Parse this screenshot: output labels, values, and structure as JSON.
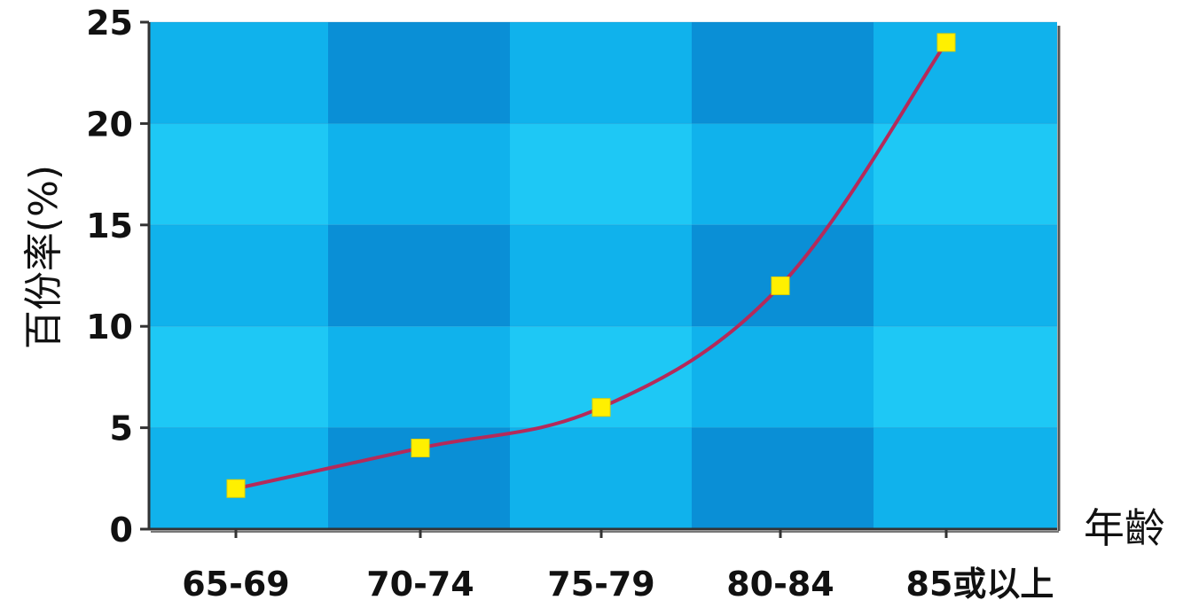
{
  "chart_data": {
    "type": "line",
    "title": "",
    "xlabel": "年齡",
    "ylabel": "百份率(%)",
    "categories": [
      "65-69",
      "70-74",
      "75-79",
      "80-84",
      "85或以上"
    ],
    "series": [
      {
        "values": [
          2,
          4,
          6,
          12,
          24
        ]
      }
    ],
    "ylim": [
      0,
      25
    ],
    "yticks": [
      "0",
      "5",
      "10",
      "15",
      "20",
      "25"
    ],
    "grid": true,
    "legend": "none",
    "colors": {
      "plot_light": "#1ec8f5",
      "plot_mid": "#10b2ec",
      "plot_dark": "#0a8fd6",
      "line": "#b42a5a",
      "marker": "#fff000",
      "axis": "#333333"
    }
  }
}
